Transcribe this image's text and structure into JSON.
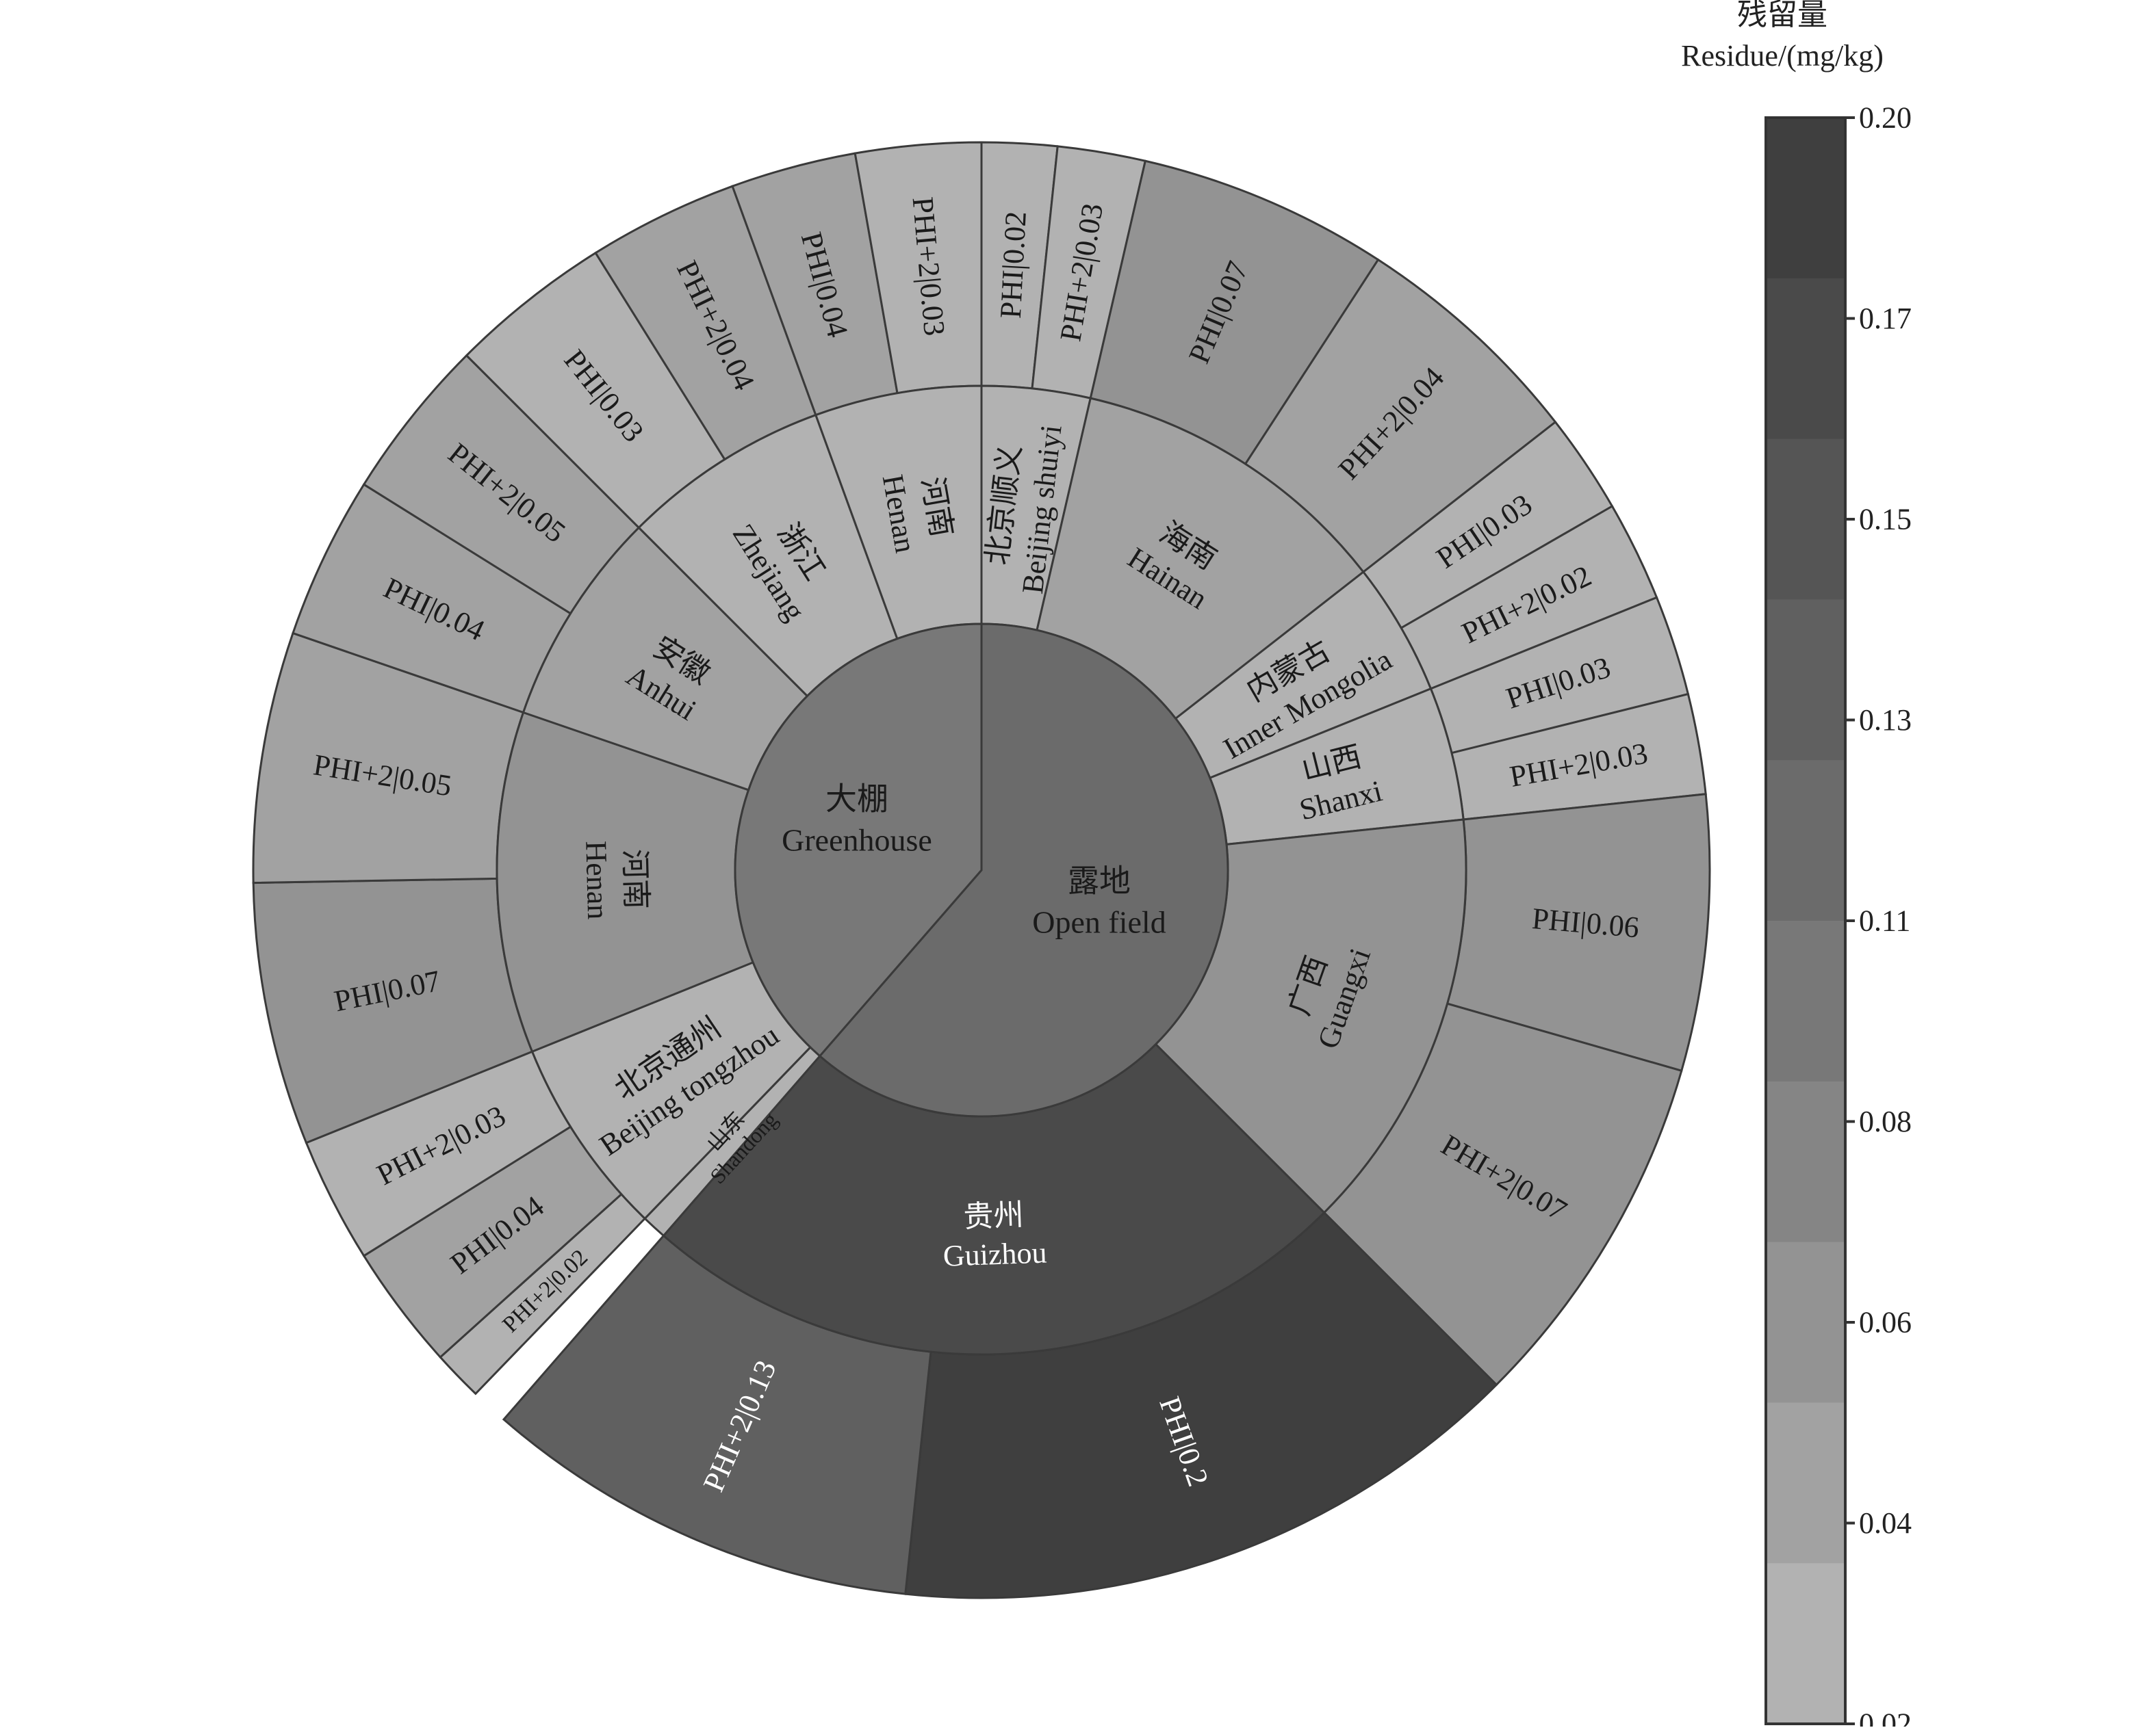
{
  "chart_data": {
    "type": "sunburst",
    "value_note": "Residue/(mg/kg)",
    "colorbar": {
      "title_cn": "残留量",
      "title_en": "Residue/(mg/kg)",
      "ticks": [
        "0.20",
        "0.17",
        "0.15",
        "0.13",
        "0.11",
        "0.08",
        "0.06",
        "0.04",
        "0.02"
      ],
      "min": 0.02,
      "max": 0.2,
      "colors": [
        "#3f3f3f",
        "#4a4a4a",
        "#555555",
        "#606060",
        "#6b6b6b",
        "#787878",
        "#858585",
        "#939393",
        "#a2a2a2",
        "#b2b2b2"
      ]
    },
    "root": [
      {
        "cn": "露地",
        "en": "Open field",
        "value": 0.116,
        "children": [
          {
            "cn": "北京顺义",
            "en": "Beijing shuiyi",
            "value": 0.025,
            "children": [
              {
                "label": "PHI|0.02",
                "value": 0.02
              },
              {
                "label": "PHI+2|0.03",
                "value": 0.03
              }
            ]
          },
          {
            "cn": "海南",
            "en": "Hainan",
            "value": 0.055,
            "children": [
              {
                "label": "PHI|0.07",
                "value": 0.07
              },
              {
                "label": "PHI+2|0.04",
                "value": 0.04
              }
            ]
          },
          {
            "cn": "内蒙古",
            "en": "Inner Mongolia",
            "value": 0.025,
            "children": [
              {
                "label": "PHI|0.03",
                "value": 0.03
              },
              {
                "label": "PHI+2|0.02",
                "value": 0.02
              }
            ]
          },
          {
            "cn": "山西",
            "en": "Shanxi",
            "value": 0.03,
            "children": [
              {
                "label": "PHI|0.03",
                "value": 0.03
              },
              {
                "label": "PHI+2|0.03",
                "value": 0.03
              }
            ]
          },
          {
            "cn": "广西",
            "en": "Guangxi",
            "value": 0.065,
            "children": [
              {
                "label": "PHI|0.06",
                "value": 0.06
              },
              {
                "label": "PHI+2|0.07",
                "value": 0.07
              }
            ]
          },
          {
            "cn": "贵州",
            "en": "Guizhou",
            "value": 0.165,
            "children": [
              {
                "label": "PHI|0.2",
                "value": 0.2
              },
              {
                "label": "PHI+2|0.13",
                "value": 0.13
              }
            ]
          }
        ]
      },
      {
        "cn": "大棚",
        "en": "Greenhouse",
        "value": 0.1,
        "children": [
          {
            "cn": "山东",
            "en": "Shandong",
            "value": 0.0
          },
          {
            "cn": "北京通州",
            "en": "Beijing tongzhou",
            "value": 0.03,
            "children": [
              {
                "label": "PHI+2|0.02",
                "value": 0.02
              },
              {
                "label": "PHI|0.04",
                "value": 0.04
              },
              {
                "label": "PHI+2|0.03",
                "value": 0.03
              }
            ]
          },
          {
            "cn": "河南",
            "en": "Henan",
            "value": 0.06,
            "children": [
              {
                "label": "PHI|0.07",
                "value": 0.07
              },
              {
                "label": "PHI+2|0.05",
                "value": 0.05
              }
            ]
          },
          {
            "cn": "安徽",
            "en": "Anhui",
            "value": 0.045,
            "children": [
              {
                "label": "PHI|0.04",
                "value": 0.04
              },
              {
                "label": "PHI+2|0.05",
                "value": 0.05
              }
            ]
          },
          {
            "cn": "浙江",
            "en": "Zhejiang",
            "value": 0.035,
            "children": [
              {
                "label": "PHI|0.03",
                "value": 0.03
              },
              {
                "label": "PHI+2|0.04",
                "value": 0.04
              }
            ]
          },
          {
            "cn": "河南",
            "en": "Henan",
            "value": 0.035,
            "children": [
              {
                "label": "PHI|0.04",
                "value": 0.04
              },
              {
                "label": "PHI+2|0.03",
                "value": 0.03
              }
            ]
          }
        ]
      }
    ]
  }
}
